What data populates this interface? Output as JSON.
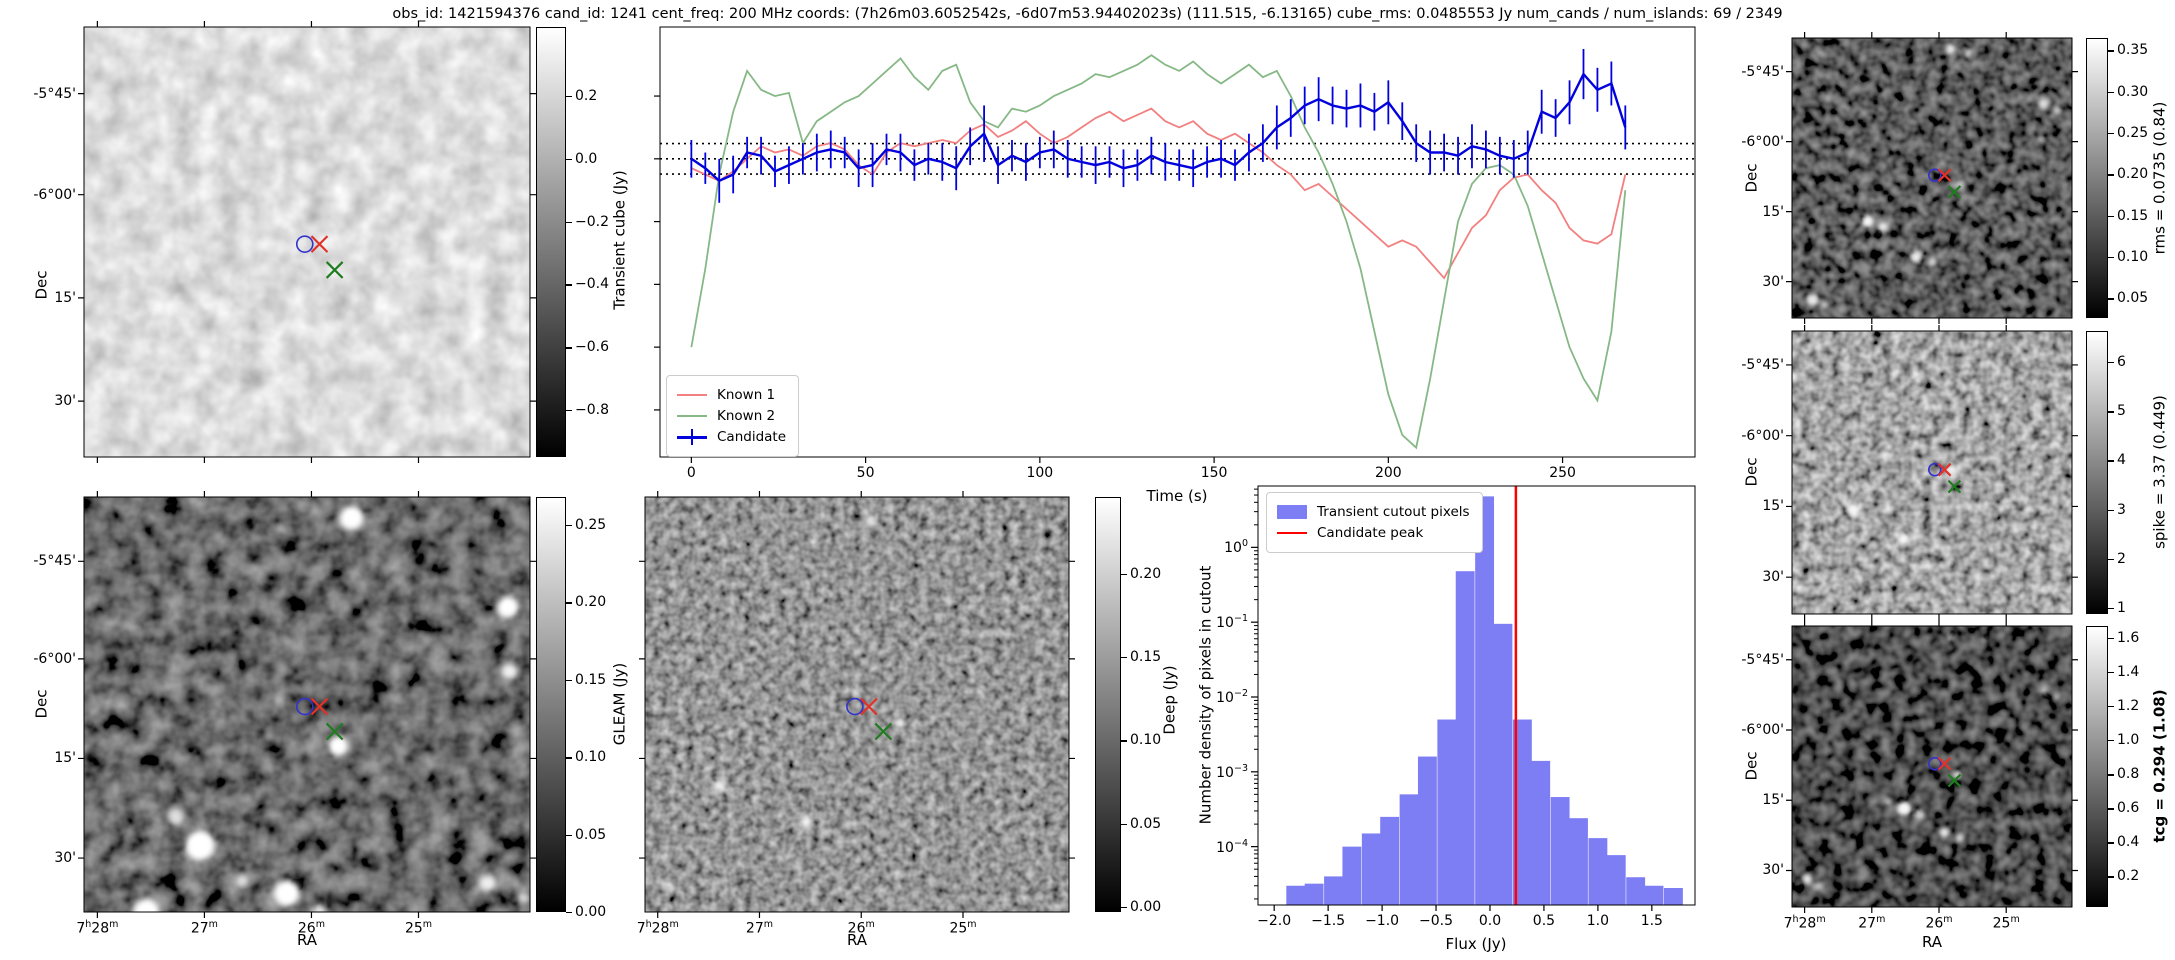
{
  "title": "obs_id: 1421594376 cand_id: 1241 cent_freq: 200 MHz coords: (7h26m03.6052542s, -6d07m53.94402023s) (111.515, -6.13165) cube_rms: 0.0485553 Jy num_cands / num_islands: 69 / 2349",
  "axes": {
    "dec_label": "Dec",
    "ra_label": "RA",
    "dec_ticks": [
      "-5°45'",
      "-6°00'",
      "15'",
      "30'"
    ],
    "ra_ticks": [
      "7h28m",
      "27m",
      "26m",
      "25m"
    ]
  },
  "markers": {
    "candidate_marker": "red-x",
    "known_source_marker": "green-x",
    "island_contour": "blue-contour"
  },
  "colorbars": {
    "transient_cube": {
      "label": "Transient cube (Jy)",
      "ticks": [
        "0.2",
        "0.0",
        "−0.2",
        "−0.4",
        "−0.6",
        "−0.8"
      ]
    },
    "gleam": {
      "label": "GLEAM (Jy)",
      "ticks": [
        "0.25",
        "0.20",
        "0.15",
        "0.10",
        "0.05",
        "0.00"
      ]
    },
    "deep": {
      "label": "Deep (Jy)",
      "ticks": [
        "0.20",
        "0.15",
        "0.10",
        "0.05",
        "0.00"
      ]
    },
    "rms": {
      "label": "rms = 0.0735 (0.84)",
      "ticks": [
        "0.35",
        "0.30",
        "0.25",
        "0.20",
        "0.15",
        "0.10",
        "0.05"
      ]
    },
    "spike": {
      "label": "spike = 3.37 (0.449)",
      "ticks": [
        "6",
        "5",
        "4",
        "3",
        "2",
        "1"
      ]
    },
    "tcg": {
      "label": "tcg = 0.294 (1.08)",
      "ticks": [
        "1.6",
        "1.4",
        "1.2",
        "1.0",
        "0.8",
        "0.6",
        "0.4",
        "0.2"
      ]
    }
  },
  "chart_data": [
    {
      "type": "line",
      "name": "lightcurve",
      "xlabel": "Time (s)",
      "ylabel": "",
      "xlim": [
        -9,
        288
      ],
      "ylim": [
        -0.95,
        0.42
      ],
      "x_ticks": [
        0,
        50,
        100,
        150,
        200,
        250
      ],
      "y_ticks": [
        0.2,
        0.0,
        -0.2,
        -0.4,
        -0.6,
        -0.8
      ],
      "dotted_hlines": [
        0.0486,
        0.0,
        -0.0486
      ],
      "legend_position": "lower left",
      "x": [
        0,
        4,
        8,
        12,
        16,
        20,
        24,
        28,
        32,
        36,
        40,
        44,
        48,
        52,
        56,
        60,
        64,
        68,
        72,
        76,
        80,
        84,
        88,
        92,
        96,
        100,
        104,
        108,
        112,
        116,
        120,
        124,
        128,
        132,
        136,
        140,
        144,
        148,
        152,
        156,
        160,
        164,
        168,
        172,
        176,
        180,
        184,
        188,
        192,
        196,
        200,
        204,
        208,
        212,
        216,
        220,
        224,
        228,
        232,
        236,
        240,
        244,
        248,
        252,
        256,
        260,
        264,
        268
      ],
      "series": [
        {
          "name": "Known 1",
          "color": "#f28080",
          "values": [
            -0.03,
            -0.05,
            -0.07,
            -0.04,
            0.0,
            0.04,
            0.02,
            0.03,
            0.01,
            0.04,
            0.05,
            0.03,
            -0.02,
            -0.05,
            0.02,
            0.05,
            0.04,
            0.05,
            0.06,
            0.05,
            0.09,
            0.11,
            0.07,
            0.09,
            0.12,
            0.08,
            0.05,
            0.07,
            0.1,
            0.13,
            0.15,
            0.12,
            0.14,
            0.16,
            0.12,
            0.1,
            0.12,
            0.08,
            0.06,
            0.08,
            0.05,
            0.02,
            -0.02,
            -0.05,
            -0.1,
            -0.08,
            -0.12,
            -0.16,
            -0.2,
            -0.24,
            -0.28,
            -0.26,
            -0.28,
            -0.33,
            -0.38,
            -0.3,
            -0.22,
            -0.18,
            -0.1,
            -0.06,
            -0.05,
            -0.1,
            -0.14,
            -0.22,
            -0.26,
            -0.27,
            -0.24,
            -0.05
          ]
        },
        {
          "name": "Known 2",
          "color": "#86b886",
          "values": [
            -0.6,
            -0.35,
            -0.05,
            0.15,
            0.28,
            0.22,
            0.2,
            0.21,
            0.05,
            0.12,
            0.15,
            0.18,
            0.2,
            0.24,
            0.28,
            0.32,
            0.26,
            0.22,
            0.28,
            0.3,
            0.18,
            0.12,
            0.1,
            0.16,
            0.15,
            0.17,
            0.2,
            0.22,
            0.24,
            0.27,
            0.26,
            0.28,
            0.3,
            0.33,
            0.3,
            0.28,
            0.31,
            0.27,
            0.24,
            0.27,
            0.3,
            0.26,
            0.28,
            0.2,
            0.1,
            0.02,
            -0.08,
            -0.2,
            -0.35,
            -0.55,
            -0.75,
            -0.88,
            -0.92,
            -0.7,
            -0.45,
            -0.2,
            -0.08,
            -0.03,
            -0.02,
            -0.05,
            -0.15,
            -0.3,
            -0.45,
            -0.6,
            -0.7,
            -0.77,
            -0.55,
            -0.1
          ]
        },
        {
          "name": "Candidate",
          "color": "#0202dd",
          "values": [
            0.0,
            -0.03,
            -0.07,
            -0.05,
            0.02,
            0.01,
            -0.04,
            -0.02,
            0.0,
            0.02,
            0.03,
            0.02,
            -0.03,
            -0.02,
            0.03,
            0.02,
            -0.02,
            0.0,
            -0.01,
            -0.03,
            0.04,
            0.08,
            -0.02,
            0.01,
            -0.01,
            0.02,
            0.03,
            0.0,
            -0.01,
            -0.02,
            -0.01,
            -0.03,
            -0.02,
            0.01,
            -0.01,
            -0.02,
            -0.03,
            -0.01,
            0.0,
            -0.02,
            0.02,
            0.05,
            0.1,
            0.13,
            0.17,
            0.19,
            0.17,
            0.16,
            0.17,
            0.15,
            0.18,
            0.12,
            0.05,
            0.02,
            0.02,
            0.01,
            0.04,
            0.03,
            0.01,
            0.0,
            0.02,
            0.15,
            0.13,
            0.18,
            0.27,
            0.22,
            0.24,
            0.1
          ],
          "errors": [
            0.06,
            0.05,
            0.07,
            0.06,
            0.05,
            0.06,
            0.05,
            0.06,
            0.05,
            0.06,
            0.06,
            0.05,
            0.06,
            0.07,
            0.05,
            0.06,
            0.05,
            0.05,
            0.06,
            0.07,
            0.06,
            0.09,
            0.06,
            0.05,
            0.06,
            0.05,
            0.06,
            0.06,
            0.05,
            0.06,
            0.05,
            0.06,
            0.05,
            0.06,
            0.06,
            0.05,
            0.06,
            0.05,
            0.06,
            0.05,
            0.06,
            0.06,
            0.07,
            0.06,
            0.06,
            0.07,
            0.06,
            0.06,
            0.07,
            0.06,
            0.07,
            0.06,
            0.06,
            0.07,
            0.06,
            0.06,
            0.07,
            0.06,
            0.06,
            0.06,
            0.07,
            0.07,
            0.06,
            0.07,
            0.08,
            0.07,
            0.07,
            0.07
          ]
        }
      ]
    },
    {
      "type": "bar",
      "name": "flux-histogram",
      "xlabel": "Flux (Jy)",
      "ylabel": "Number density of pixels in cutout",
      "x_ticks": [
        -2.0,
        -1.5,
        -1.0,
        -0.5,
        0.0,
        0.5,
        1.0,
        1.5
      ],
      "y_scale": "log",
      "y_tick_exponents": [
        0,
        -1,
        -2,
        -3,
        -4
      ],
      "xlim": [
        -2.15,
        1.9
      ],
      "ylim_exponents": [
        -4.78,
        0.82
      ],
      "bin_width": 0.175,
      "bin_centers": [
        -1.8,
        -1.63,
        -1.45,
        -1.28,
        -1.1,
        -0.93,
        -0.75,
        -0.58,
        -0.4,
        -0.23,
        -0.05,
        0.12,
        0.3,
        0.47,
        0.65,
        0.82,
        1.0,
        1.17,
        1.35,
        1.52,
        1.7
      ],
      "densities": [
        3e-05,
        3.2e-05,
        4e-05,
        0.0001,
        0.00015,
        0.00025,
        0.0005,
        0.0016,
        0.005,
        0.48,
        4.8,
        0.095,
        0.005,
        0.0014,
        0.00046,
        0.00024,
        0.00013,
        7.7e-05,
        3.9e-05,
        3e-05,
        2.8e-05
      ],
      "candidate_peak_flux": 0.24,
      "legend": [
        "Transient cutout pixels",
        "Candidate peak"
      ],
      "bar_color": "#7d7df4",
      "line_color": "#ff0000"
    }
  ]
}
